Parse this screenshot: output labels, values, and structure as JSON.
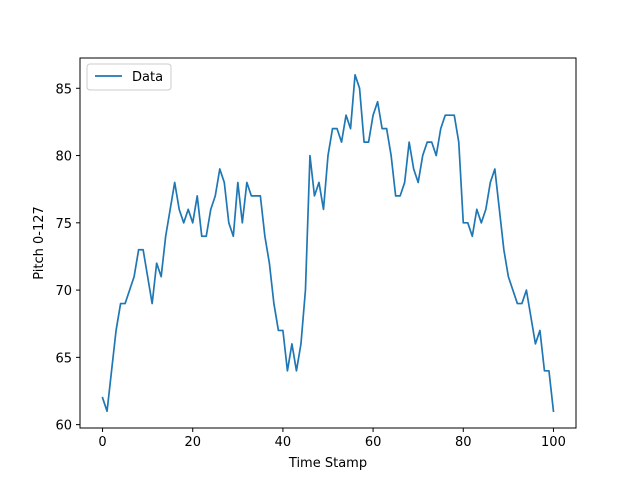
{
  "chart_data": {
    "type": "line",
    "title": "",
    "xlabel": "Time Stamp",
    "ylabel": "Pitch 0-127",
    "xlim": [
      -5,
      105
    ],
    "ylim": [
      59.75,
      87.25
    ],
    "x_ticks": [
      0,
      20,
      40,
      60,
      80,
      100
    ],
    "y_ticks": [
      60,
      65,
      70,
      75,
      80,
      85
    ],
    "grid": false,
    "legend_position": "top-left",
    "series": [
      {
        "name": "Data",
        "color": "#1f77b4",
        "x": [
          0,
          1,
          2,
          3,
          4,
          5,
          6,
          7,
          8,
          9,
          10,
          11,
          12,
          13,
          14,
          15,
          16,
          17,
          18,
          19,
          20,
          21,
          22,
          23,
          24,
          25,
          26,
          27,
          28,
          29,
          30,
          31,
          32,
          33,
          34,
          35,
          36,
          37,
          38,
          39,
          40,
          41,
          42,
          43,
          44,
          45,
          46,
          47,
          48,
          49,
          50,
          51,
          52,
          53,
          54,
          55,
          56,
          57,
          58,
          59,
          60,
          61,
          62,
          63,
          64,
          65,
          66,
          67,
          68,
          69,
          70,
          71,
          72,
          73,
          74,
          75,
          76,
          77,
          78,
          79,
          80,
          81,
          82,
          83,
          84,
          85,
          86,
          87,
          88,
          89,
          90,
          91,
          92,
          93,
          94,
          95,
          96,
          97,
          98,
          99,
          100
        ],
        "values": [
          62,
          61,
          64,
          67,
          69,
          69,
          70,
          71,
          73,
          73,
          71,
          69,
          72,
          71,
          74,
          76,
          78,
          76,
          75,
          76,
          75,
          77,
          74,
          74,
          76,
          77,
          79,
          78,
          75,
          74,
          78,
          75,
          78,
          77,
          77,
          77,
          74,
          72,
          69,
          67,
          67,
          64,
          66,
          64,
          66,
          70,
          80,
          77,
          78,
          76,
          80,
          82,
          82,
          81,
          83,
          82,
          86,
          85,
          81,
          81,
          83,
          84,
          82,
          82,
          80,
          77,
          77,
          78,
          81,
          79,
          78,
          80,
          81,
          81,
          80,
          82,
          83,
          83,
          83,
          81,
          75,
          75,
          74,
          76,
          75,
          76,
          78,
          79,
          76,
          73,
          71,
          70,
          69,
          69,
          70,
          68,
          66,
          67,
          64,
          64,
          61
        ]
      }
    ]
  }
}
